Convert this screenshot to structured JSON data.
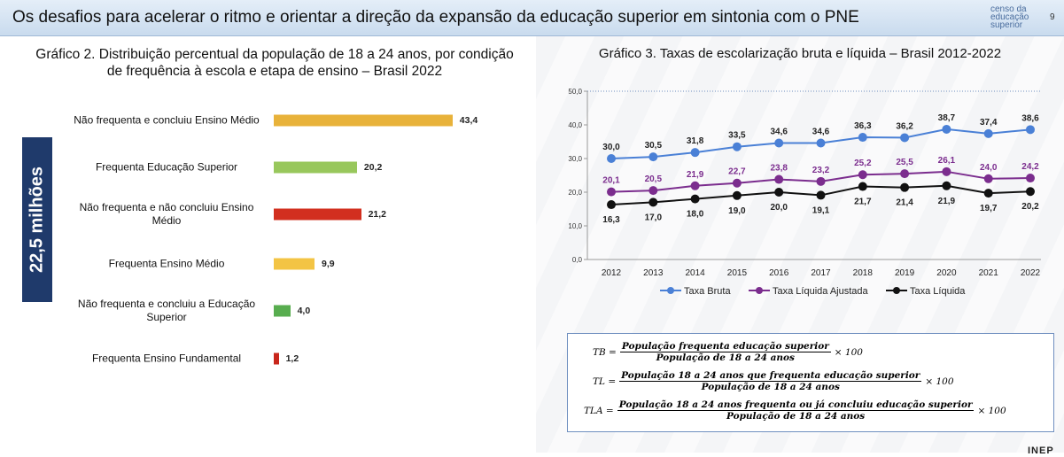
{
  "header": {
    "title": "Os desafios para acelerar o ritmo e orientar a direção da expansão da educação superior em sintonia com o PNE",
    "logo": "censo da educação superior",
    "page": "9"
  },
  "side_label": "22,5 milhões",
  "chart_data": [
    {
      "type": "hbar",
      "title": "Gráfico 2. Distribuição percentual da população de 18 a 24 anos, por condição de frequência à escola e etapa de ensino – Brasil 2022",
      "categories": [
        "Não frequenta e concluiu Ensino Médio",
        "Frequenta Educação Superior",
        "Não frequenta e não concluiu Ensino Médio",
        "Frequenta Ensino Médio",
        "Não frequenta e concluiu a Educação Superior",
        "Frequenta Ensino Fundamental"
      ],
      "values": [
        43.4,
        20.2,
        21.2,
        9.9,
        4.0,
        1.2
      ],
      "value_labels": [
        "43,4",
        "20,2",
        "21,2",
        "9,9",
        "4,0",
        "1,2"
      ],
      "colors": [
        "#e8b23a",
        "#98c75c",
        "#d22f1f",
        "#f3c444",
        "#58ad4f",
        "#c8261b"
      ]
    },
    {
      "type": "line",
      "title": "Gráfico 3. Taxas de escolarização bruta e líquida – Brasil 2012-2022",
      "categories": [
        "2012",
        "2013",
        "2014",
        "2015",
        "2016",
        "2017",
        "2018",
        "2019",
        "2020",
        "2021",
        "2022"
      ],
      "ylim": [
        0,
        50
      ],
      "yticks": [
        {
          "value": 0,
          "label": "0,0"
        },
        {
          "value": 10,
          "label": "10,0"
        },
        {
          "value": 20,
          "label": "20,0"
        },
        {
          "value": 30,
          "label": "30,0"
        },
        {
          "value": 40,
          "label": "40,0"
        },
        {
          "value": 50,
          "label": "50,0"
        }
      ],
      "grid": false,
      "legend": "bottom",
      "series": [
        {
          "name": "Taxa Bruta",
          "color": "#4a80d6",
          "values": [
            30.0,
            30.5,
            31.8,
            33.5,
            34.6,
            34.6,
            36.3,
            36.2,
            38.7,
            37.4,
            38.6
          ],
          "value_labels": [
            "30,0",
            "30,5",
            "31,8",
            "33,5",
            "34,6",
            "34,6",
            "36,3",
            "36,2",
            "38,7",
            "37,4",
            "38,6"
          ]
        },
        {
          "name": "Taxa Líquida Ajustada",
          "color": "#7b2d8e",
          "values": [
            20.1,
            20.5,
            21.9,
            22.7,
            23.8,
            23.2,
            25.2,
            25.5,
            26.1,
            24.0,
            24.2
          ],
          "value_labels": [
            "20,1",
            "20,5",
            "21,9",
            "22,7",
            "23,8",
            "23,2",
            "25,2",
            "25,5",
            "26,1",
            "24,0",
            "24,2"
          ]
        },
        {
          "name": "Taxa Líquida",
          "color": "#111111",
          "values": [
            16.3,
            17.0,
            18.0,
            19.0,
            20.0,
            19.1,
            21.7,
            21.4,
            21.9,
            19.7,
            20.2
          ],
          "value_labels": [
            "16,3",
            "17,0",
            "18,0",
            "19,0",
            "20,0",
            "19,1",
            "21,7",
            "21,4",
            "21,9",
            "19,7",
            "20,2"
          ]
        }
      ]
    }
  ],
  "formulas": [
    {
      "lhs": "TB =",
      "numerator": "População frequenta educação superior",
      "denominator": "População de 18 a 24 anos",
      "factor": "× 100"
    },
    {
      "lhs": "TL =",
      "numerator": "População 18 a 24 anos que frequenta educação superior",
      "denominator": "População de 18 a 24 anos",
      "factor": "× 100"
    },
    {
      "lhs": "TLA =",
      "numerator": "População 18 a 24 anos frequenta ou já concluiu educação superior",
      "denominator": "População de 18 a 24 anos",
      "factor": "× 100"
    }
  ],
  "footer": "INEP"
}
